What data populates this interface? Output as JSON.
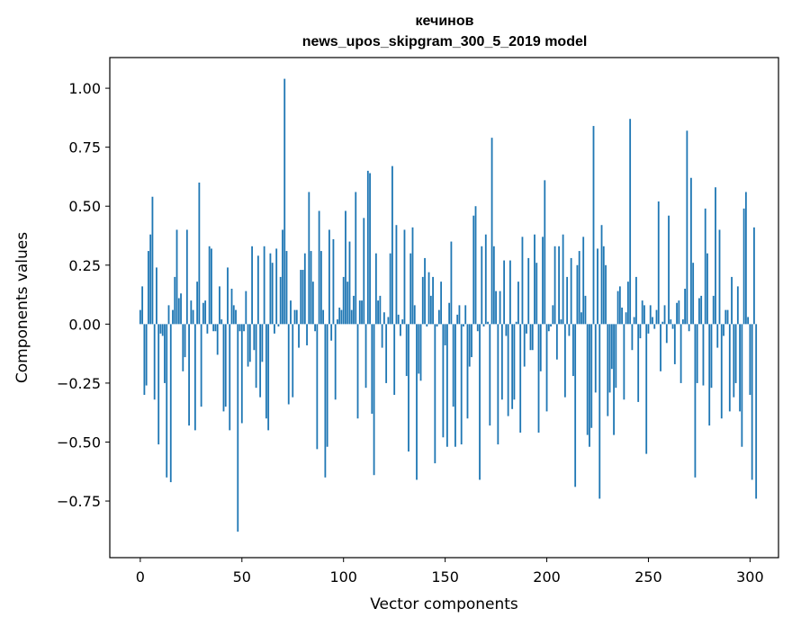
{
  "chart_data": {
    "type": "bar",
    "title": "кечинов",
    "subtitle": "news_upos_skipgram_300_5_2019 model",
    "xlabel": "Vector components",
    "ylabel": "Components values",
    "xlim": [
      -15,
      314
    ],
    "ylim": [
      -0.99,
      1.13
    ],
    "x_ticks": [
      0,
      50,
      100,
      150,
      200,
      250,
      300
    ],
    "x_tick_labels": [
      "0",
      "50",
      "100",
      "150",
      "200",
      "250",
      "300"
    ],
    "y_ticks": [
      1.0,
      0.75,
      0.5,
      0.25,
      0.0,
      -0.25,
      -0.5,
      -0.75
    ],
    "y_tick_labels": [
      "1.00",
      "0.75",
      "0.50",
      "0.25",
      "0.00",
      "−0.25",
      "−0.50",
      "−0.75"
    ],
    "grid": false,
    "bar_color": "#1f77b4",
    "values": [
      0.06,
      0.16,
      -0.3,
      -0.26,
      0.31,
      0.38,
      0.54,
      -0.32,
      0.24,
      -0.51,
      -0.04,
      -0.05,
      -0.25,
      -0.65,
      0.08,
      -0.67,
      0.06,
      0.2,
      0.4,
      0.11,
      0.13,
      -0.2,
      -0.14,
      0.4,
      -0.43,
      0.1,
      0.06,
      -0.45,
      0.18,
      0.6,
      -0.35,
      0.09,
      0.1,
      -0.04,
      0.33,
      0.32,
      -0.03,
      -0.03,
      -0.13,
      0.16,
      0.02,
      -0.37,
      -0.35,
      0.24,
      -0.45,
      0.15,
      0.08,
      0.06,
      -0.88,
      -0.03,
      -0.42,
      -0.03,
      0.14,
      -0.18,
      -0.16,
      0.33,
      -0.11,
      -0.27,
      0.29,
      -0.31,
      -0.16,
      0.33,
      -0.4,
      -0.45,
      0.3,
      0.26,
      -0.04,
      0.32,
      -0.01,
      0.2,
      0.4,
      1.04,
      0.31,
      -0.34,
      0.1,
      -0.31,
      0.06,
      0.06,
      -0.1,
      0.23,
      0.23,
      0.3,
      -0.09,
      0.56,
      0.31,
      0.18,
      -0.03,
      -0.53,
      0.48,
      0.31,
      0.06,
      -0.65,
      -0.52,
      0.4,
      -0.07,
      0.36,
      -0.32,
      0.02,
      0.07,
      0.06,
      0.2,
      0.48,
      0.18,
      0.35,
      0.06,
      0.12,
      0.56,
      -0.4,
      0.1,
      0.1,
      0.45,
      -0.27,
      0.65,
      0.64,
      -0.38,
      -0.64,
      0.3,
      0.1,
      0.12,
      -0.1,
      0.05,
      -0.25,
      0.03,
      0.3,
      0.67,
      -0.3,
      0.42,
      0.04,
      -0.05,
      0.02,
      0.4,
      -0.22,
      -0.54,
      0.3,
      0.41,
      0.08,
      -0.66,
      -0.21,
      -0.24,
      0.2,
      0.28,
      -0.01,
      0.22,
      0.12,
      0.2,
      -0.59,
      -0.01,
      0.06,
      0.18,
      -0.48,
      -0.09,
      -0.52,
      0.09,
      0.35,
      -0.35,
      -0.52,
      0.04,
      0.08,
      -0.51,
      -0.01,
      0.08,
      -0.4,
      -0.18,
      -0.14,
      0.46,
      0.5,
      -0.03,
      -0.66,
      0.33,
      -0.01,
      0.38,
      0.01,
      -0.43,
      0.79,
      0.33,
      0.14,
      -0.51,
      0.14,
      -0.32,
      0.27,
      -0.05,
      -0.39,
      0.27,
      -0.36,
      -0.32,
      0.01,
      0.18,
      -0.46,
      0.37,
      -0.18,
      -0.04,
      0.28,
      -0.11,
      -0.11,
      0.38,
      0.26,
      -0.46,
      -0.2,
      0.37,
      0.61,
      -0.37,
      -0.03,
      -0.01,
      0.08,
      0.33,
      -0.15,
      0.33,
      0.02,
      0.38,
      -0.31,
      0.2,
      -0.05,
      0.28,
      -0.22,
      -0.69,
      0.25,
      0.31,
      0.05,
      0.37,
      0.12,
      -0.47,
      -0.52,
      -0.44,
      0.84,
      -0.29,
      0.32,
      -0.74,
      0.42,
      0.33,
      0.25,
      -0.39,
      -0.29,
      -0.19,
      -0.47,
      -0.27,
      0.14,
      0.16,
      0.07,
      -0.32,
      0.05,
      0.18,
      0.87,
      -0.11,
      0.03,
      0.2,
      -0.33,
      -0.06,
      0.1,
      0.08,
      -0.55,
      -0.04,
      0.08,
      0.03,
      -0.02,
      0.06,
      0.52,
      -0.2,
      0.01,
      0.08,
      -0.08,
      0.46,
      0.02,
      -0.02,
      -0.17,
      0.09,
      0.1,
      -0.25,
      0.02,
      0.15,
      0.82,
      -0.03,
      0.62,
      0.26,
      -0.65,
      -0.25,
      0.11,
      0.12,
      -0.26,
      0.49,
      0.3,
      -0.43,
      -0.27,
      0.12,
      0.58,
      -0.1,
      0.4,
      -0.4,
      -0.05,
      0.06,
      0.06,
      -0.37,
      0.2,
      -0.31,
      -0.25,
      0.16,
      -0.37,
      -0.52,
      0.49,
      0.56,
      0.03,
      -0.3,
      -0.66,
      0.41,
      -0.74
    ]
  }
}
